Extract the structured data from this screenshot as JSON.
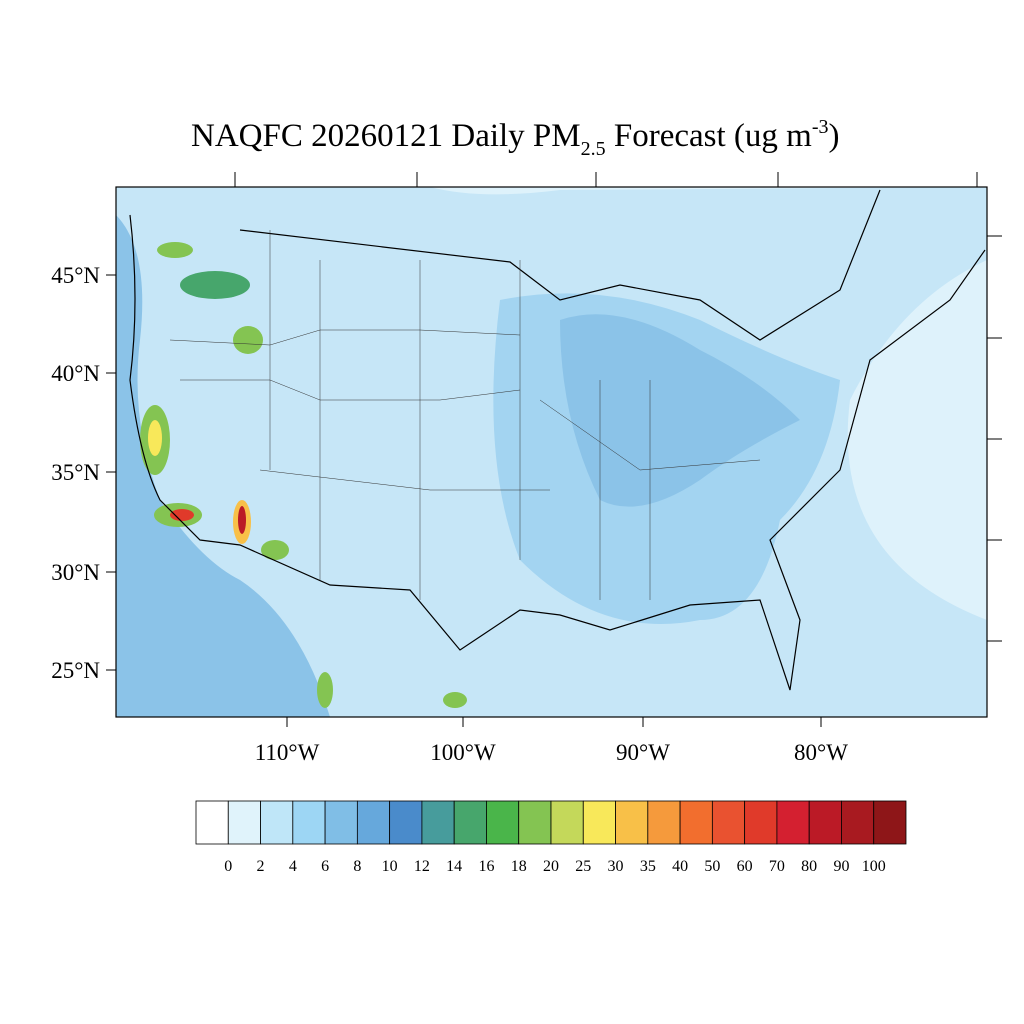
{
  "title": {
    "main": "NAQFC 20260121 Daily PM",
    "subscript": "2.5",
    "middle": " Forecast (ug m",
    "superscript": "-3",
    "end": ")"
  },
  "lat_labels": [
    "45°N",
    "40°N",
    "35°N",
    "30°N",
    "25°N"
  ],
  "lon_labels": [
    "110°W",
    "100°W",
    "90°W",
    "80°W"
  ],
  "colorbar": {
    "colors": [
      "#ffffff",
      "#e0f3fb",
      "#bfe6f8",
      "#9dd6f4",
      "#80bee6",
      "#66a8dc",
      "#4a8bcb",
      "#479c9c",
      "#47a66c",
      "#4ab54a",
      "#84c452",
      "#c4d85a",
      "#f8e85a",
      "#f8c048",
      "#f59a3c",
      "#f26e2e",
      "#e95230",
      "#e03a2a",
      "#d42030",
      "#bb1a26",
      "#a81a20",
      "#8e1618"
    ],
    "labels": [
      "0",
      "2",
      "4",
      "6",
      "8",
      "10",
      "12",
      "14",
      "16",
      "18",
      "20",
      "25",
      "30",
      "35",
      "40",
      "50",
      "60",
      "70",
      "80",
      "90",
      "100"
    ]
  }
}
